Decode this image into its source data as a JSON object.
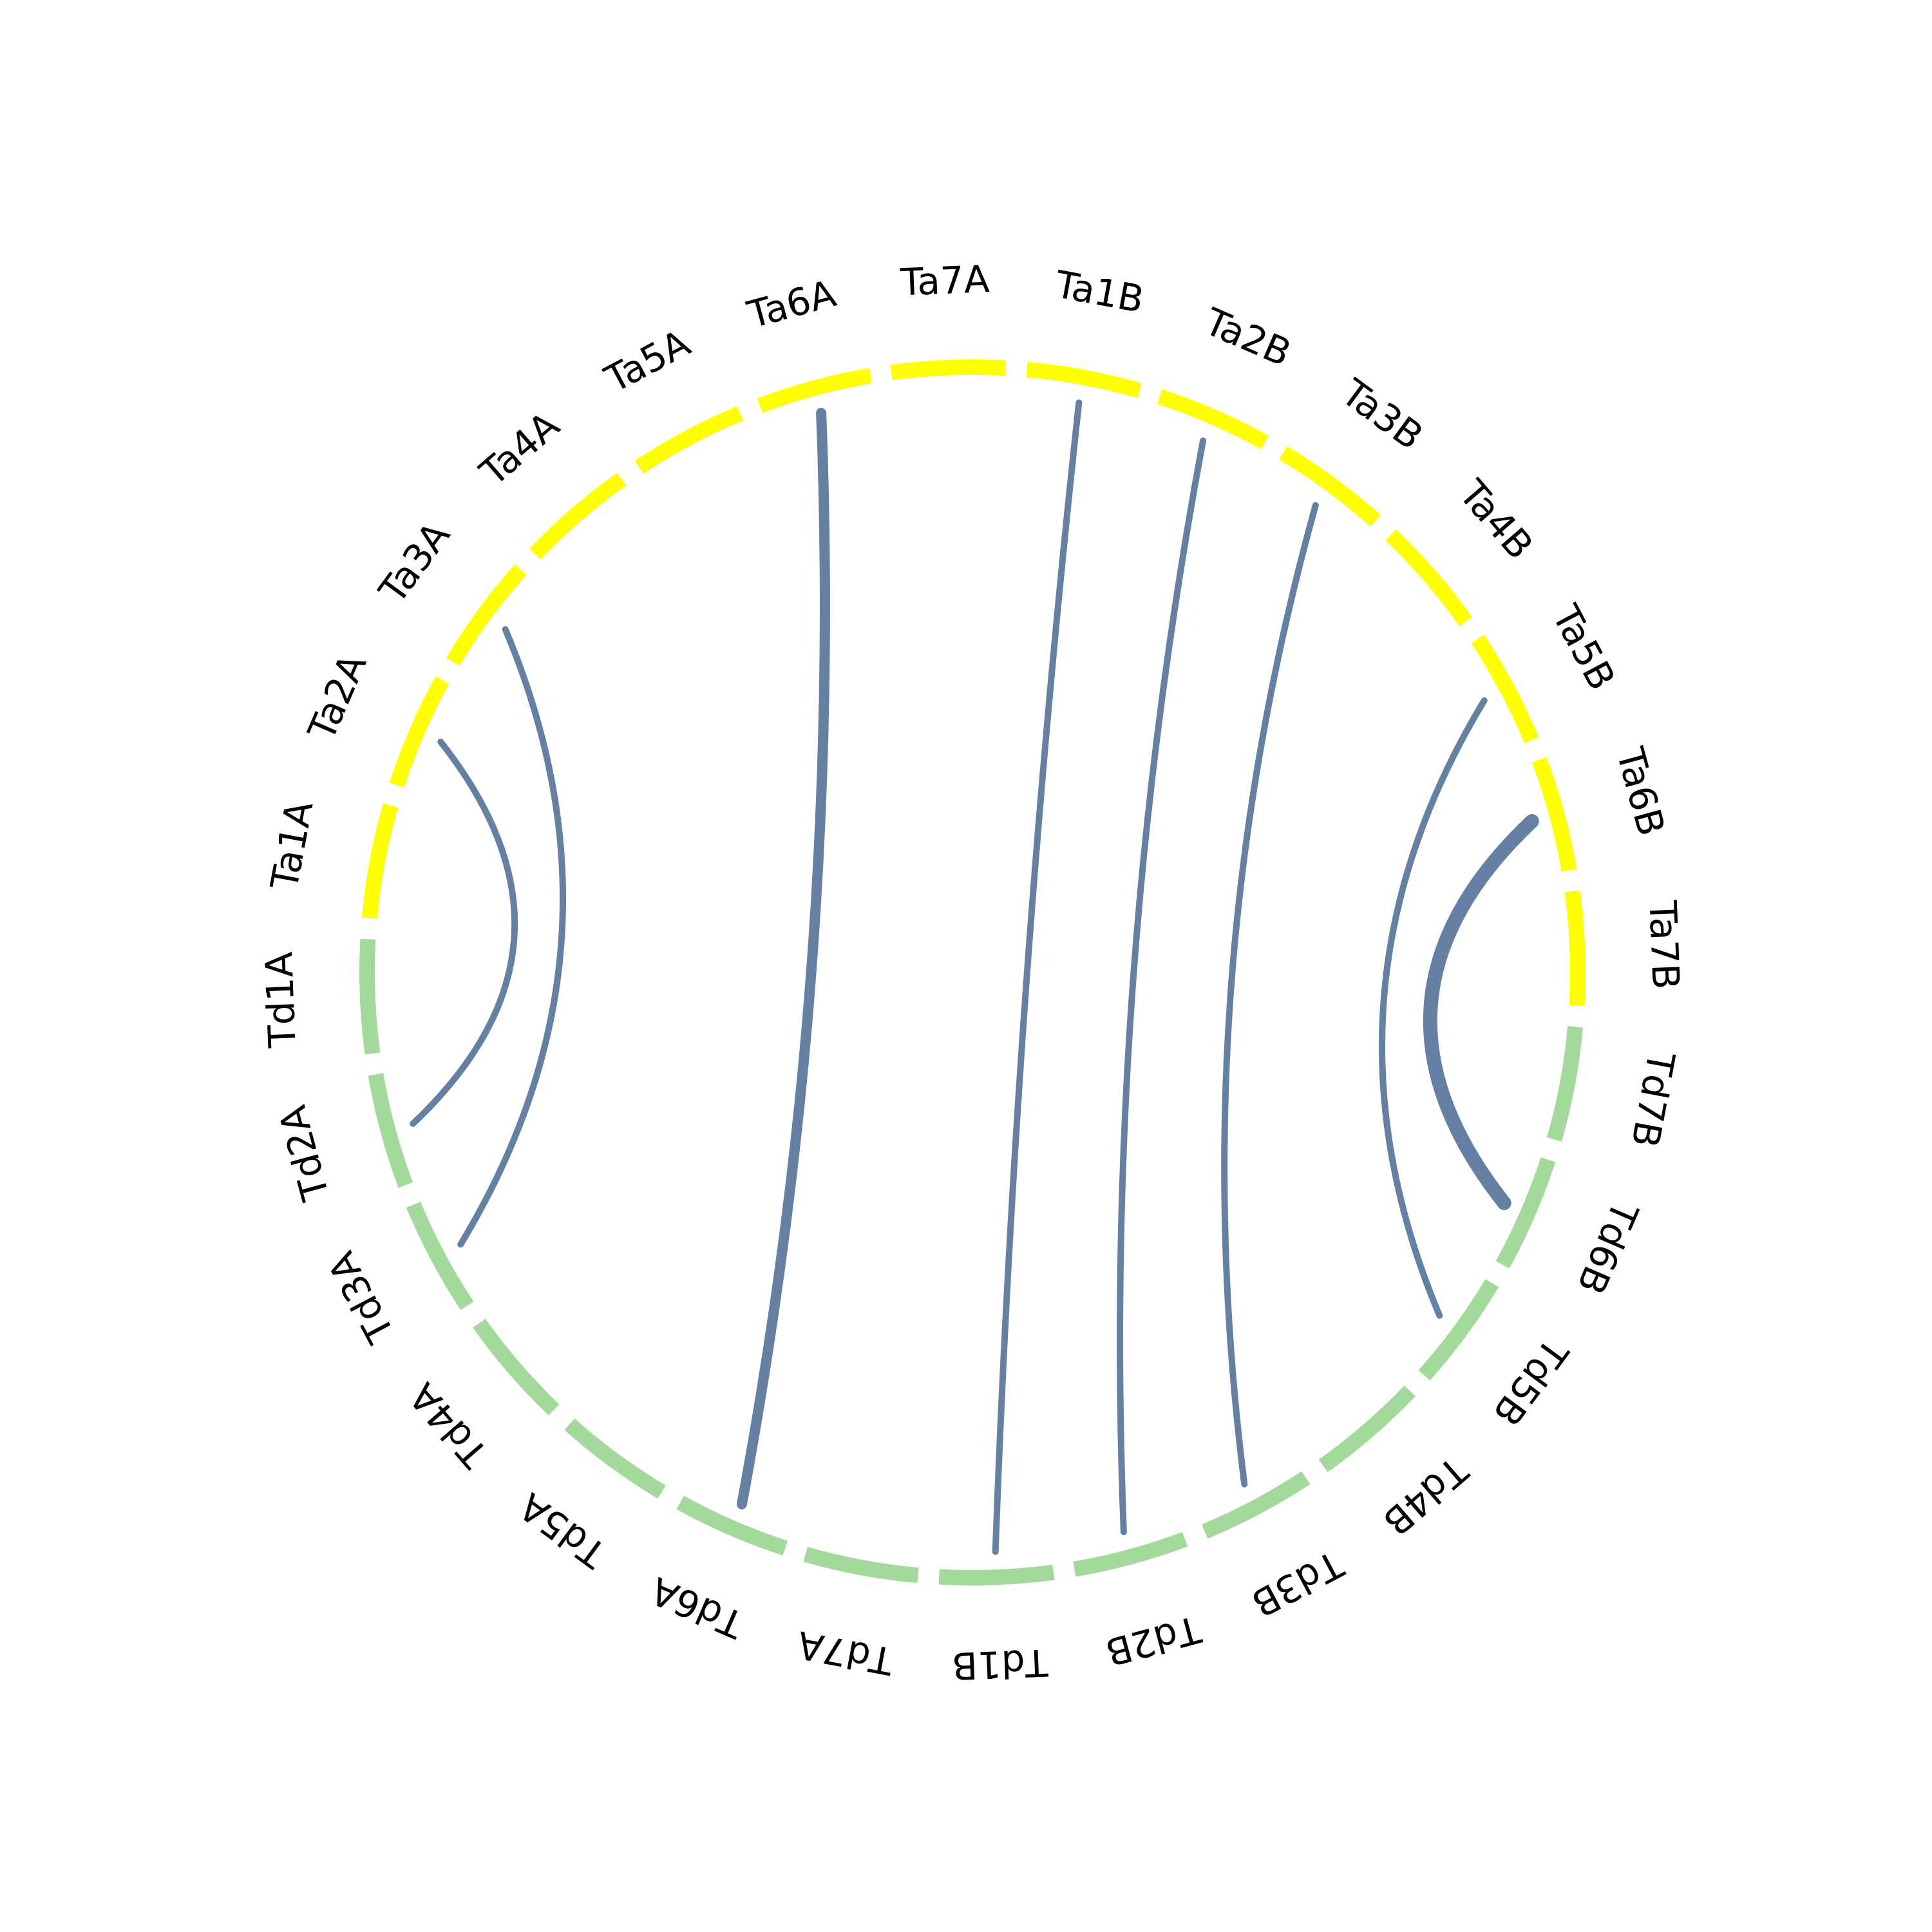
{
  "colors": {
    "td_segment": "#a3da9c",
    "ta_segment": "#ffff00",
    "link": "#6680a3",
    "label": "#000000"
  },
  "segments": [
    {
      "id": "Td1A",
      "group": "Td"
    },
    {
      "id": "Ta1A",
      "group": "Ta"
    },
    {
      "id": "Ta2A",
      "group": "Ta"
    },
    {
      "id": "Ta3A",
      "group": "Ta"
    },
    {
      "id": "Ta4A",
      "group": "Ta"
    },
    {
      "id": "Ta5A",
      "group": "Ta"
    },
    {
      "id": "Ta6A",
      "group": "Ta"
    },
    {
      "id": "Ta7A",
      "group": "Ta"
    },
    {
      "id": "Ta1B",
      "group": "Ta"
    },
    {
      "id": "Ta2B",
      "group": "Ta"
    },
    {
      "id": "Ta3B",
      "group": "Ta"
    },
    {
      "id": "Ta4B",
      "group": "Ta"
    },
    {
      "id": "Ta5B",
      "group": "Ta"
    },
    {
      "id": "Ta6B",
      "group": "Ta"
    },
    {
      "id": "Ta7B",
      "group": "Ta"
    },
    {
      "id": "Td7B",
      "group": "Td"
    },
    {
      "id": "Td6B",
      "group": "Td"
    },
    {
      "id": "Td5B",
      "group": "Td"
    },
    {
      "id": "Td4B",
      "group": "Td"
    },
    {
      "id": "Td3B",
      "group": "Td"
    },
    {
      "id": "Td2B",
      "group": "Td"
    },
    {
      "id": "Td1B",
      "group": "Td"
    },
    {
      "id": "Td7A",
      "group": "Td"
    },
    {
      "id": "Td6A",
      "group": "Td"
    },
    {
      "id": "Td5A",
      "group": "Td"
    },
    {
      "id": "Td4A",
      "group": "Td"
    },
    {
      "id": "Td3A",
      "group": "Td"
    },
    {
      "id": "Td2A",
      "group": "Td"
    }
  ],
  "links": [
    {
      "from": "Td2A",
      "to": "Ta2A",
      "weight": 1
    },
    {
      "from": "Td3A",
      "to": "Ta3A",
      "weight": 1
    },
    {
      "from": "Td6A",
      "to": "Ta6A",
      "weight": 2
    },
    {
      "from": "Td1B",
      "to": "Ta1B",
      "weight": 1
    },
    {
      "from": "Td2B",
      "to": "Ta2B",
      "weight": 1
    },
    {
      "from": "Td3B",
      "to": "Ta3B",
      "weight": 1
    },
    {
      "from": "Td5B",
      "to": "Ta5B",
      "weight": 1
    },
    {
      "from": "Td6B",
      "to": "Ta6B",
      "weight": 3
    }
  ]
}
